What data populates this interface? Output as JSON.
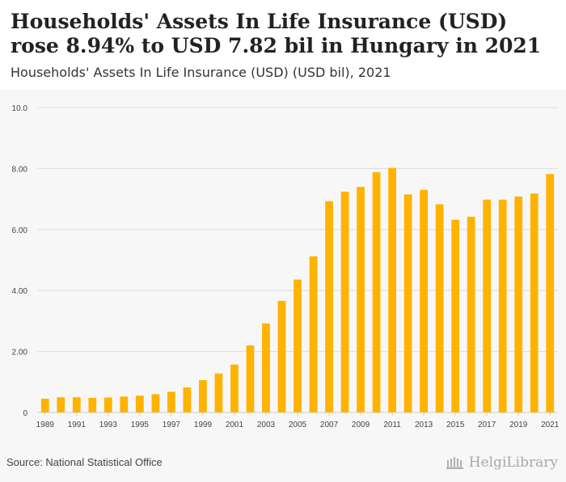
{
  "header": {
    "title": "Households' Assets In Life Insurance (USD) rose 8.94% to USD 7.82 bil in Hungary in 2021",
    "subtitle": "Households' Assets In Life Insurance (USD) (USD bil), 2021"
  },
  "footer": {
    "source": "Source: National Statistical Office",
    "logo_text": "HelgiLibrary"
  },
  "colors": {
    "bar": "#FFB300",
    "grid": "#dddddd",
    "axis_text": "#444444"
  },
  "chart_data": {
    "type": "bar",
    "title": "Households' Assets In Life Insurance (USD) rose 8.94% to USD 7.82 bil in Hungary in 2021",
    "subtitle": "Households' Assets In Life Insurance (USD) (USD bil), 2021",
    "xlabel": "",
    "ylabel": "USD bil",
    "ylim": [
      0,
      10
    ],
    "yticks": [
      0,
      2,
      4,
      6,
      8,
      10
    ],
    "ytick_labels": [
      "0",
      "2.00",
      "4.00",
      "6.00",
      "8.00",
      "10.0"
    ],
    "categories": [
      "1989",
      "1990",
      "1991",
      "1992",
      "1993",
      "1994",
      "1995",
      "1996",
      "1997",
      "1998",
      "1999",
      "2000",
      "2001",
      "2002",
      "2003",
      "2004",
      "2005",
      "2006",
      "2007",
      "2008",
      "2009",
      "2010",
      "2011",
      "2012",
      "2013",
      "2014",
      "2015",
      "2016",
      "2017",
      "2018",
      "2019",
      "2020",
      "2021"
    ],
    "xtick_labels": [
      "1989",
      "1991",
      "1993",
      "1995",
      "1997",
      "1999",
      "2001",
      "2003",
      "2005",
      "2007",
      "2009",
      "2011",
      "2013",
      "2015",
      "2017",
      "2019",
      "2021"
    ],
    "values": [
      0.45,
      0.5,
      0.5,
      0.48,
      0.49,
      0.52,
      0.55,
      0.6,
      0.68,
      0.82,
      1.06,
      1.28,
      1.57,
      2.2,
      2.92,
      3.66,
      4.36,
      5.12,
      6.93,
      7.24,
      7.4,
      7.88,
      8.02,
      7.15,
      7.3,
      6.83,
      6.32,
      6.42,
      6.98,
      6.98,
      7.08,
      7.18,
      7.82
    ],
    "grid": true,
    "legend": "none"
  }
}
